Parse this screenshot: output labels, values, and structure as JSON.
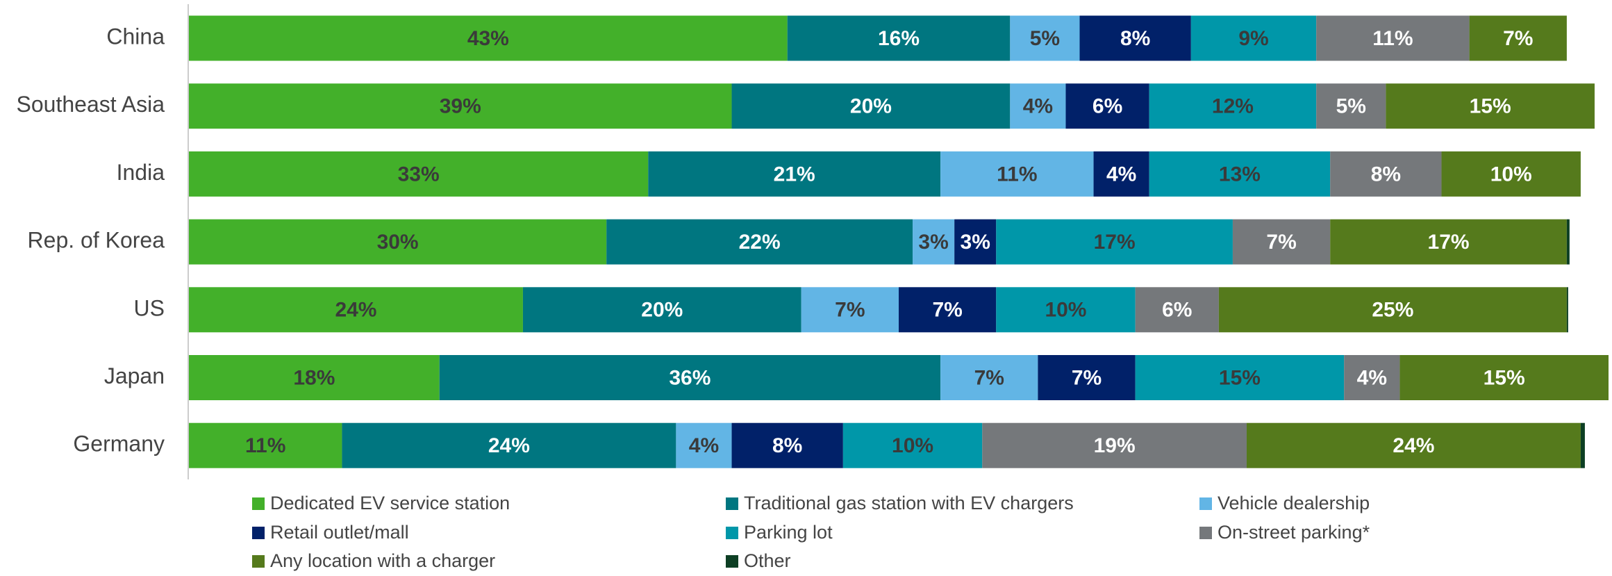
{
  "chart_data": {
    "type": "stacked_bar_horizontal",
    "categories": [
      "China",
      "Southeast Asia",
      "India",
      "Rep. of Korea",
      "US",
      "Japan",
      "Germany"
    ],
    "series": [
      {
        "name": "Dedicated EV service station",
        "color": "#43b02a",
        "label_color": "#3a3a3a",
        "values": [
          43,
          39,
          33,
          30,
          24,
          18,
          11
        ],
        "value_labels": [
          "43%",
          "39%",
          "33%",
          "30%",
          "24%",
          "18%",
          "11%"
        ]
      },
      {
        "name": "Traditional gas station with EV chargers",
        "color": "#007680",
        "label_color": "#ffffff",
        "values": [
          16,
          20,
          21,
          22,
          20,
          36,
          24
        ],
        "value_labels": [
          "16%",
          "20%",
          "21%",
          "22%",
          "20%",
          "36%",
          "24%"
        ]
      },
      {
        "name": "Vehicle dealership",
        "color": "#62b5e5",
        "label_color": "#3a3a3a",
        "values": [
          5,
          4,
          11,
          3,
          7,
          7,
          4
        ],
        "value_labels": [
          "5%",
          "4%",
          "11%",
          "3%",
          "7%",
          "7%",
          "4%"
        ]
      },
      {
        "name": "Retail outlet/mall",
        "color": "#012169",
        "label_color": "#ffffff",
        "values": [
          8,
          6,
          4,
          3,
          7,
          7,
          8
        ],
        "value_labels": [
          "8%",
          "6%",
          "4%",
          "3%",
          "7%",
          "7%",
          "8%"
        ]
      },
      {
        "name": "Parking lot",
        "color": "#0097a9",
        "label_color": "#3a3a3a",
        "values": [
          9,
          12,
          13,
          17,
          10,
          15,
          10
        ],
        "value_labels": [
          "9%",
          "12%",
          "13%",
          "17%",
          "10%",
          "15%",
          "10%"
        ]
      },
      {
        "name": "On-street parking*",
        "color": "#75787b",
        "label_color": "#ffffff",
        "values": [
          11,
          5,
          8,
          7,
          6,
          4,
          19
        ],
        "value_labels": [
          "11%",
          "5%",
          "8%",
          "7%",
          "6%",
          "4%",
          "19%"
        ]
      },
      {
        "name": "Any location with a charger",
        "color": "#557a1c",
        "label_color": "#ffffff",
        "values": [
          7,
          15,
          10,
          17,
          25,
          15,
          24
        ],
        "value_labels": [
          "7%",
          "15%",
          "10%",
          "17%",
          "25%",
          "15%",
          "24%"
        ]
      },
      {
        "name": "Other",
        "color": "#0d3f24",
        "label_color": "#ffffff",
        "values": [
          0,
          0,
          0,
          0.2,
          0.1,
          0,
          0.3
        ],
        "value_labels": [
          null,
          null,
          null,
          null,
          null,
          null,
          null
        ]
      }
    ]
  }
}
